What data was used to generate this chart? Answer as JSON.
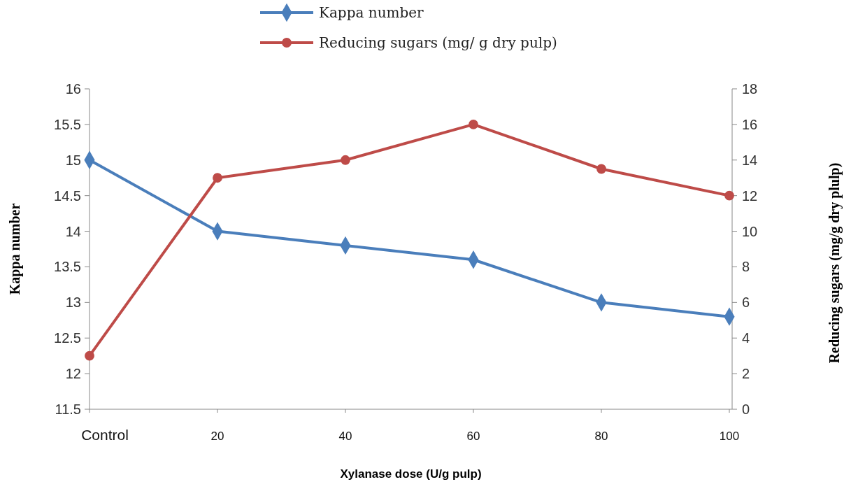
{
  "chart_data": {
    "type": "line",
    "xlabel": "Xylanase dose (U/g pulp)",
    "ylabel": "Kappa number",
    "y2label": "Reducing sugars (mg/g dry plulp)",
    "categories": [
      "Control",
      "20",
      "40",
      "60",
      "80",
      "100"
    ],
    "series": [
      {
        "name": "Kappa number",
        "color": "#4a7ebb",
        "marker": "diamond",
        "values": [
          15,
          14,
          13.8,
          13.6,
          13.0,
          12.8
        ]
      },
      {
        "name": "Reducing sugars (mg/ g dry pulp)",
        "color": "#be4b48",
        "marker": "circle",
        "axis": "y2",
        "values": [
          3,
          13,
          14,
          16,
          13.5,
          12
        ]
      }
    ],
    "ylim": [
      11.5,
      16
    ],
    "yticks": [
      11.5,
      12,
      12.5,
      13,
      13.5,
      14,
      14.5,
      15,
      15.5,
      16
    ],
    "y2lim": [
      0,
      18
    ],
    "y2ticks": [
      0,
      2,
      4,
      6,
      8,
      10,
      12,
      14,
      16,
      18
    ],
    "grid": false,
    "legend": "top",
    "line_style": "solid"
  }
}
